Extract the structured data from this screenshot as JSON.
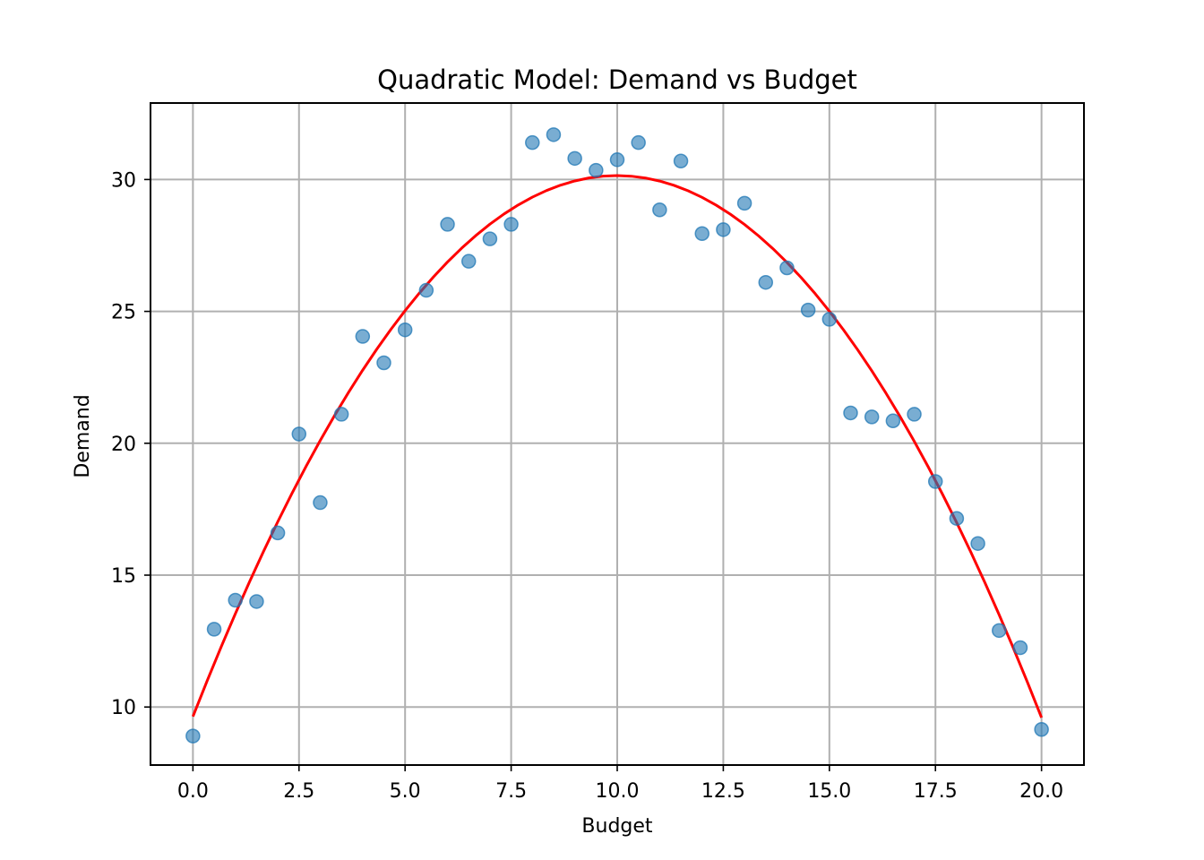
{
  "chart_data": {
    "type": "scatter",
    "title": "Quadratic Model: Demand vs Budget",
    "xlabel": "Budget",
    "ylabel": "Demand",
    "xlim": [
      -1.0,
      21.0
    ],
    "ylim": [
      7.8,
      32.9
    ],
    "xticks": [
      0.0,
      2.5,
      5.0,
      7.5,
      10.0,
      12.5,
      15.0,
      17.5,
      20.0
    ],
    "xtick_labels": [
      "0.0",
      "2.5",
      "5.0",
      "7.5",
      "10.0",
      "12.5",
      "15.0",
      "17.5",
      "20.0"
    ],
    "yticks": [
      10,
      15,
      20,
      25,
      30
    ],
    "ytick_labels": [
      "10",
      "15",
      "20",
      "25",
      "30"
    ],
    "grid": true,
    "series": [
      {
        "type": "scatter",
        "color": "#1f77b4",
        "x": [
          0.0,
          0.5,
          1.0,
          1.5,
          2.0,
          2.5,
          3.0,
          3.5,
          4.0,
          4.5,
          5.0,
          5.5,
          6.0,
          6.5,
          7.0,
          7.5,
          8.0,
          8.5,
          9.0,
          9.5,
          10.0,
          10.5,
          11.0,
          11.5,
          12.0,
          12.5,
          13.0,
          13.5,
          14.0,
          14.5,
          15.0,
          15.5,
          16.0,
          16.5,
          17.0,
          17.5,
          18.0,
          18.5,
          19.0,
          19.5,
          20.0
        ],
        "y": [
          8.9,
          12.95,
          14.05,
          14.0,
          16.6,
          20.35,
          17.75,
          21.1,
          24.05,
          23.05,
          24.3,
          25.8,
          28.3,
          26.9,
          27.75,
          28.3,
          31.4,
          31.7,
          30.8,
          30.35,
          30.75,
          31.4,
          28.85,
          30.7,
          27.95,
          28.1,
          29.1,
          26.1,
          26.65,
          25.05,
          24.7,
          21.15,
          21.0,
          20.85,
          21.1,
          18.55,
          17.15,
          16.2,
          12.9,
          12.25,
          9.15
        ]
      },
      {
        "type": "line",
        "color": "#ff0000",
        "fit": {
          "a": -0.2053,
          "b": 4.1039,
          "c": 9.64
        },
        "x_range": [
          0.0,
          20.0
        ]
      }
    ]
  }
}
